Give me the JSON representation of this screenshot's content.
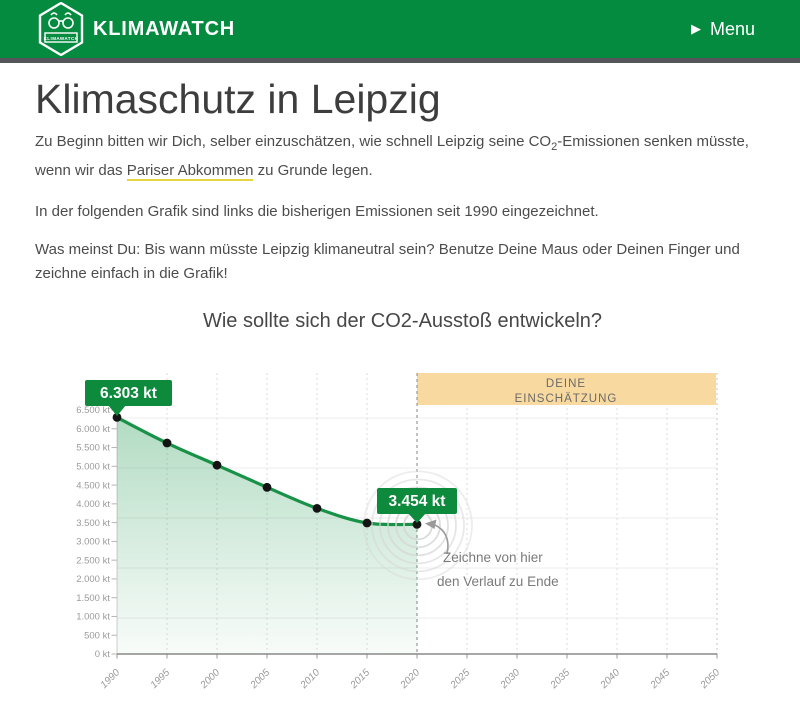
{
  "header": {
    "brand": "KLIMAWATCH",
    "logo_label": "KLIMAWATCH",
    "menu": {
      "icon": "▶",
      "label": "Menu"
    }
  },
  "intro": {
    "title": "Klimaschutz in Leipzig",
    "p1_before": "Zu Beginn bitten wir Dich, selber einzuschätzen, wie schnell Leipzig seine CO",
    "p1_sub": "2",
    "p1_mid": "-Emissionen senken müsste, wenn wir das ",
    "p1_link": "Pariser Abkommen",
    "p1_after": " zu Grunde legen.",
    "p2": "In der folgenden Grafik sind links die bisherigen Emissionen seit 1990 eingezeichnet.",
    "p3": "Was meinst Du: Bis wann müsste Leipzig klimaneutral sein? Benutze Deine Maus oder Deinen Finger und zeichne einfach in die Grafik!"
  },
  "chart": {
    "question": "Wie sollte sich der CO2-Ausstoß entwickeln?",
    "estimate_band": {
      "line1": "DEINE",
      "line2": "EINSCHÄTZUNG"
    },
    "start_badge": "6.303 kt",
    "end_badge": "3.454 kt",
    "hint_line1": "Zeichne von hier",
    "hint_line2": "den Verlauf zu Ende"
  },
  "chart_data": {
    "type": "line",
    "title": "Wie sollte sich der CO2-Ausstoß entwickeln?",
    "x": [
      1990,
      1995,
      2000,
      2005,
      2010,
      2015,
      2020
    ],
    "values": [
      6303,
      5620,
      5030,
      4440,
      3880,
      3490,
      3454
    ],
    "x_ticks": [
      1990,
      1995,
      2000,
      2005,
      2010,
      2015,
      2020,
      2025,
      2030,
      2035,
      2040,
      2045,
      2050
    ],
    "y_ticks": [
      "6.500 kt",
      "6.000 kt",
      "5.500 kt",
      "5.000 kt",
      "4.500 kt",
      "4.000 kt",
      "3.500 kt",
      "3.000 kt",
      "2.500 kt",
      "2.000 kt",
      "1.500 kt",
      "1.000 kt",
      "500 kt",
      "0 kt"
    ],
    "xlim": [
      1990,
      2050
    ],
    "ylim": [
      0,
      6500
    ],
    "grid": true,
    "legend": "none",
    "annotations": [
      "6.303 kt",
      "3.454 kt",
      "Zeichne von hier den Verlauf zu Ende",
      "DEINE EINSCHÄTZUNG"
    ],
    "colors": {
      "line": "#179247",
      "fill": "#159447",
      "band": "#f8d9a0",
      "badge": "#0e8a3c",
      "dot": "#141414"
    }
  }
}
